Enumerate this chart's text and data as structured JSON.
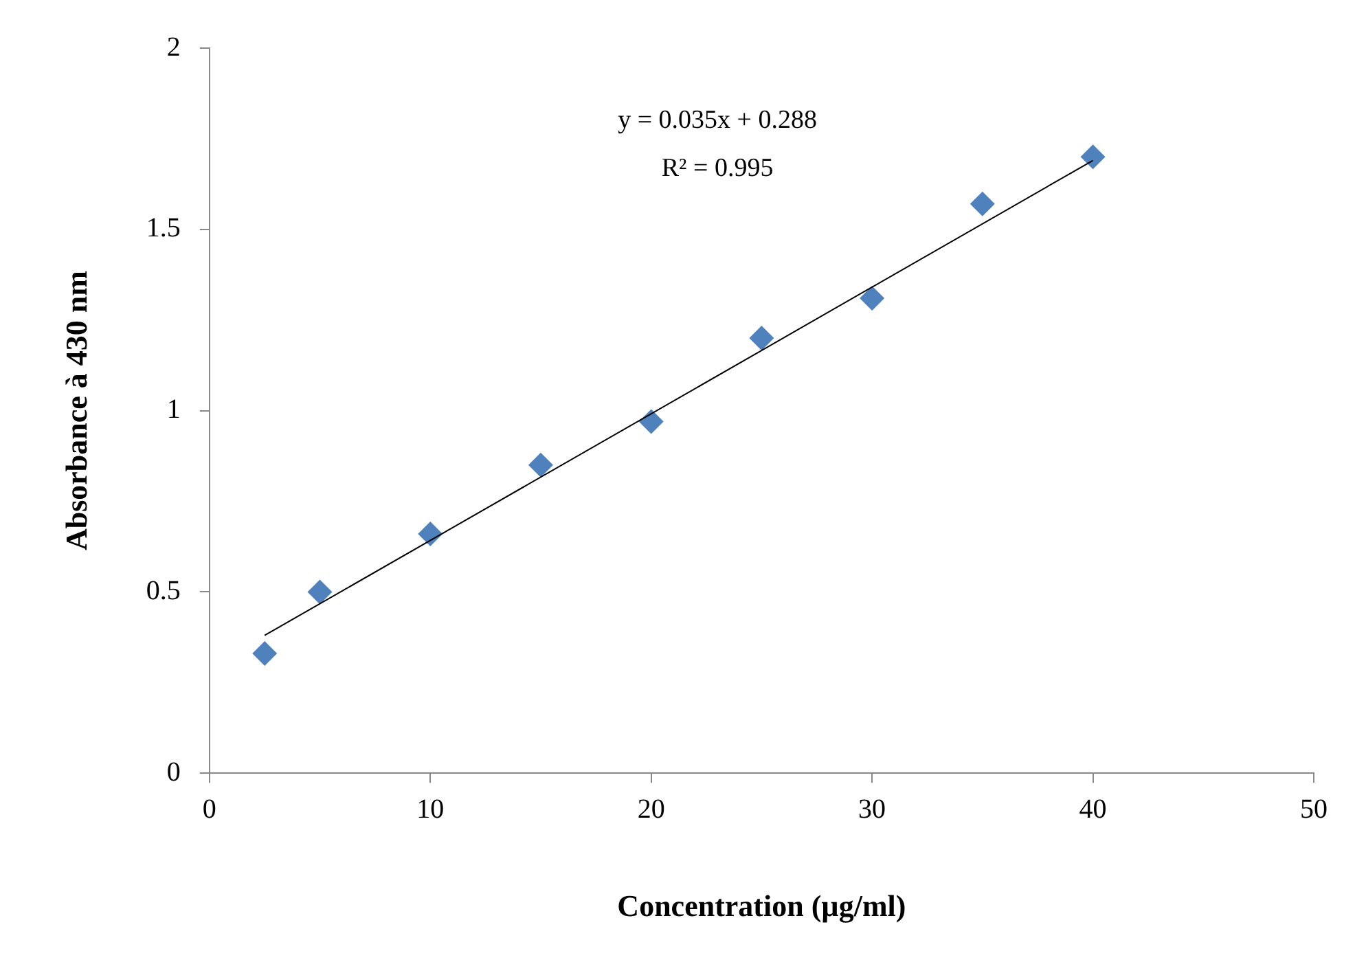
{
  "chart_data": {
    "type": "scatter",
    "xlabel": "Concentration (µg/ml)",
    "ylabel": "Absorbance à 430 nm",
    "annotations": [
      "y = 0.035x + 0.288",
      "R² = 0.995"
    ],
    "xlim": [
      0,
      50
    ],
    "xticks": [
      0,
      10,
      20,
      30,
      40,
      50
    ],
    "ylim": [
      0,
      2
    ],
    "yticks": [
      0,
      0.5,
      1,
      1.5,
      2
    ],
    "grid": false,
    "legend": false,
    "marker": "diamond",
    "series": [
      {
        "type": "scatter",
        "color": "#4f81bd",
        "x": [
          2.5,
          5,
          10,
          15,
          20,
          25,
          30,
          35,
          40
        ],
        "values": [
          0.33,
          0.5,
          0.66,
          0.85,
          0.97,
          1.2,
          1.31,
          1.57,
          1.7
        ]
      },
      {
        "type": "line",
        "color": "#000000",
        "line_style": "solid",
        "marker": "none",
        "x": [
          2.5,
          40
        ],
        "values": [
          0.38,
          1.69
        ]
      }
    ]
  }
}
